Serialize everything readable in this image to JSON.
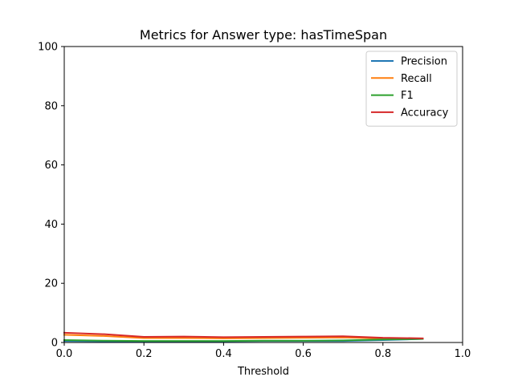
{
  "chart_data": {
    "type": "line",
    "title": "Metrics for Answer type: hasTimeSpan",
    "xlabel": "Threshold",
    "ylabel": "",
    "xlim": [
      0.0,
      1.0
    ],
    "ylim": [
      0,
      100
    ],
    "xticks": [
      "0.0",
      "0.2",
      "0.4",
      "0.6",
      "0.8",
      "1.0"
    ],
    "yticks": [
      "0",
      "20",
      "40",
      "60",
      "80",
      "100"
    ],
    "grid": false,
    "legend_position": "top-right",
    "x": [
      0.0,
      0.1,
      0.2,
      0.3,
      0.4,
      0.5,
      0.6,
      0.7,
      0.8,
      0.9
    ],
    "series": [
      {
        "name": "Precision",
        "color": "#1f77b4",
        "values": [
          0.5,
          0.4,
          0.4,
          0.4,
          0.4,
          0.5,
          0.5,
          0.5,
          0.8,
          1.2
        ]
      },
      {
        "name": "Recall",
        "color": "#ff7f0e",
        "values": [
          2.6,
          2.2,
          1.5,
          1.5,
          1.4,
          1.5,
          1.6,
          1.7,
          1.4,
          1.3
        ]
      },
      {
        "name": "F1",
        "color": "#2ca02c",
        "values": [
          0.8,
          0.6,
          0.5,
          0.5,
          0.5,
          0.6,
          0.6,
          0.7,
          1.0,
          1.2
        ]
      },
      {
        "name": "Accuracy",
        "color": "#d62728",
        "values": [
          3.3,
          2.8,
          1.9,
          2.0,
          1.8,
          1.9,
          2.0,
          2.1,
          1.6,
          1.4
        ]
      }
    ]
  }
}
